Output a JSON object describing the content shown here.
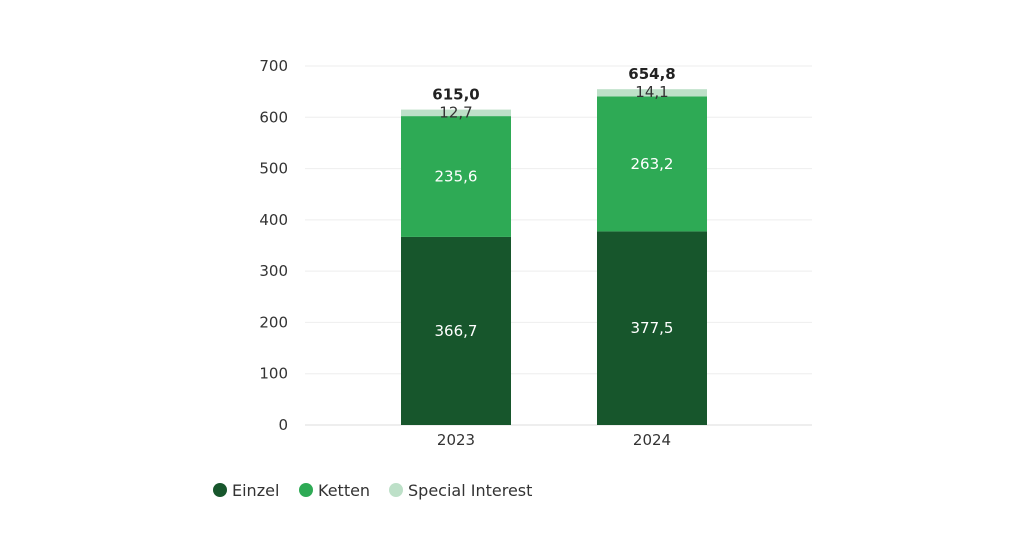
{
  "chart_data": {
    "type": "bar",
    "stacked": true,
    "categories": [
      "2023",
      "2024"
    ],
    "series": [
      {
        "name": "Einzel",
        "values": [
          366.7,
          377.5
        ],
        "value_labels": [
          "366,7",
          "377,5"
        ],
        "color": "#17562c"
      },
      {
        "name": "Ketten",
        "values": [
          235.6,
          263.2
        ],
        "value_labels": [
          "235,6",
          "263,2"
        ],
        "color": "#2eaa55"
      },
      {
        "name": "Special Interest",
        "values": [
          12.7,
          14.1
        ],
        "value_labels": [
          "12,7",
          "14,1"
        ],
        "color": "#bde0c8"
      }
    ],
    "totals": [
      "615,0",
      "654,8"
    ],
    "ylim": [
      0,
      700
    ],
    "yticks": [
      0,
      100,
      200,
      300,
      400,
      500,
      600,
      700
    ],
    "ytick_labels": [
      "0",
      "100",
      "200",
      "300",
      "400",
      "500",
      "600",
      "700"
    ],
    "grid": true,
    "legend": "bottom-left",
    "title": "",
    "xlabel": "",
    "ylabel": ""
  }
}
